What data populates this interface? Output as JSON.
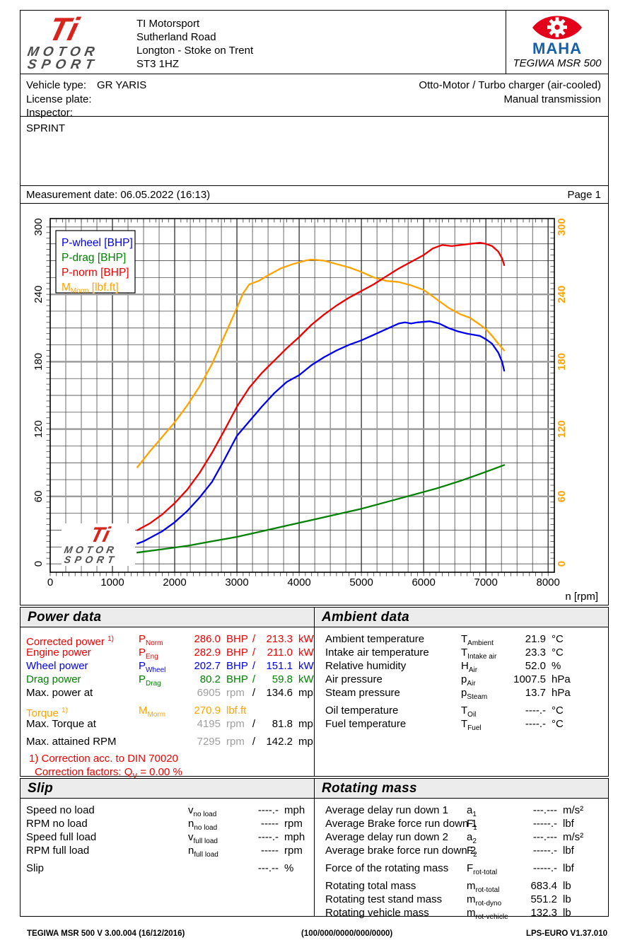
{
  "header": {
    "logo": {
      "ti": "Ti",
      "motor": "MOTOR",
      "sport": "SPORT"
    },
    "company": "TI Motorsport",
    "address_lines": [
      "Sutherland Road",
      "Longton - Stoke on Trent",
      "ST3 1HZ"
    ],
    "device": {
      "brand": "MAHA",
      "model": "TEGIWA MSR 500"
    }
  },
  "vehicle": {
    "rows": [
      {
        "label": "Vehicle type:",
        "value": "GR YARIS"
      },
      {
        "label": "License plate:",
        "value": ""
      },
      {
        "label": "Inspector:",
        "value": ""
      }
    ],
    "engine_desc": "Otto-Motor / Turbo charger (air-cooled)",
    "transmission": "Manual transmission"
  },
  "comment": "SPRINT",
  "measurement": {
    "date_line": "Measurement date: 06.05.2022 (16:13)",
    "page": "Page 1"
  },
  "chart_data": {
    "type": "line",
    "xlabel": "n [rpm]",
    "x_range": [
      0,
      8100
    ],
    "y_range": [
      -7.5,
      307.5
    ],
    "x_ticks": [
      0,
      1000,
      2000,
      3000,
      4000,
      5000,
      6000,
      7000,
      8000
    ],
    "y_ticks": [
      0,
      60,
      120,
      180,
      240,
      300
    ],
    "grid": {
      "x_minor_step": 250,
      "y_minor_step": 15,
      "y_major_step": 60,
      "minor_color": "#2e2e2e",
      "major_color": "#9c9c9c"
    },
    "right_axis_color": "#FFA300",
    "legend": [
      {
        "pre": "P-wheel [BHP]",
        "color": "#0000EE"
      },
      {
        "pre": "P-drag [BHP]",
        "color": "#008200"
      },
      {
        "pre": "P-norm [BHP]",
        "color": "#EE0000"
      },
      {
        "pre": "M",
        "sub": "Morm",
        "post": " [lbf.ft]",
        "color": "#FFA300"
      }
    ],
    "series": [
      {
        "name": "P-drag [BHP]",
        "color": "#008200",
        "points": [
          [
            1400,
            10
          ],
          [
            1800,
            13
          ],
          [
            2200,
            16
          ],
          [
            2600,
            20
          ],
          [
            3000,
            24
          ],
          [
            3400,
            29
          ],
          [
            3800,
            34
          ],
          [
            4200,
            39
          ],
          [
            4600,
            44
          ],
          [
            5000,
            49
          ],
          [
            5400,
            55
          ],
          [
            5800,
            61
          ],
          [
            6200,
            67
          ],
          [
            6600,
            74
          ],
          [
            6905,
            80
          ],
          [
            7100,
            84
          ],
          [
            7295,
            88
          ]
        ]
      },
      {
        "name": "P-wheel [BHP]",
        "color": "#0000EE",
        "points": [
          [
            1400,
            18
          ],
          [
            1500,
            20
          ],
          [
            1600,
            23
          ],
          [
            1800,
            29
          ],
          [
            2000,
            37
          ],
          [
            2200,
            47
          ],
          [
            2400,
            59
          ],
          [
            2600,
            73
          ],
          [
            2800,
            93
          ],
          [
            3000,
            114
          ],
          [
            3200,
            127
          ],
          [
            3400,
            140
          ],
          [
            3600,
            152
          ],
          [
            3800,
            162
          ],
          [
            4000,
            168
          ],
          [
            4200,
            177
          ],
          [
            4400,
            184
          ],
          [
            4600,
            190
          ],
          [
            4800,
            195
          ],
          [
            5000,
            199
          ],
          [
            5200,
            204
          ],
          [
            5400,
            209
          ],
          [
            5600,
            214
          ],
          [
            5700,
            215
          ],
          [
            5800,
            214
          ],
          [
            5900,
            215
          ],
          [
            6100,
            216
          ],
          [
            6250,
            214
          ],
          [
            6400,
            210
          ],
          [
            6550,
            207
          ],
          [
            6700,
            205
          ],
          [
            6905,
            203
          ],
          [
            7000,
            200
          ],
          [
            7100,
            196
          ],
          [
            7200,
            188
          ],
          [
            7260,
            180
          ],
          [
            7295,
            172
          ]
        ]
      },
      {
        "name": "M-Morm [lbf.ft]",
        "color": "#FFA300",
        "points": [
          [
            1400,
            86
          ],
          [
            1500,
            93
          ],
          [
            1600,
            100
          ],
          [
            1800,
            113
          ],
          [
            2000,
            126
          ],
          [
            2200,
            141
          ],
          [
            2400,
            158
          ],
          [
            2600,
            178
          ],
          [
            2800,
            203
          ],
          [
            3000,
            228
          ],
          [
            3100,
            241
          ],
          [
            3200,
            249
          ],
          [
            3350,
            252
          ],
          [
            3500,
            257
          ],
          [
            3700,
            263
          ],
          [
            3900,
            267
          ],
          [
            4100,
            270
          ],
          [
            4195,
            271
          ],
          [
            4400,
            270
          ],
          [
            4600,
            267
          ],
          [
            4800,
            264
          ],
          [
            5000,
            260
          ],
          [
            5200,
            255
          ],
          [
            5400,
            252
          ],
          [
            5600,
            251
          ],
          [
            5800,
            248
          ],
          [
            6000,
            244
          ],
          [
            6200,
            236
          ],
          [
            6400,
            228
          ],
          [
            6600,
            222
          ],
          [
            6750,
            219
          ],
          [
            6905,
            213
          ],
          [
            7000,
            209
          ],
          [
            7100,
            203
          ],
          [
            7200,
            196
          ],
          [
            7295,
            190
          ]
        ]
      },
      {
        "name": "P-norm [BHP]",
        "color": "#EE0000",
        "points": [
          [
            1400,
            30
          ],
          [
            1500,
            33
          ],
          [
            1600,
            36
          ],
          [
            1800,
            44
          ],
          [
            2000,
            54
          ],
          [
            2200,
            66
          ],
          [
            2400,
            81
          ],
          [
            2600,
            99
          ],
          [
            2800,
            119
          ],
          [
            3000,
            140
          ],
          [
            3200,
            157
          ],
          [
            3400,
            170
          ],
          [
            3600,
            181
          ],
          [
            3800,
            192
          ],
          [
            4000,
            202
          ],
          [
            4200,
            213
          ],
          [
            4400,
            222
          ],
          [
            4600,
            230
          ],
          [
            4800,
            237
          ],
          [
            5000,
            243
          ],
          [
            5200,
            249
          ],
          [
            5400,
            256
          ],
          [
            5600,
            263
          ],
          [
            5800,
            269
          ],
          [
            6000,
            275
          ],
          [
            6150,
            281
          ],
          [
            6300,
            284
          ],
          [
            6450,
            283
          ],
          [
            6600,
            284
          ],
          [
            6750,
            285
          ],
          [
            6905,
            286
          ],
          [
            7000,
            285
          ],
          [
            7100,
            283
          ],
          [
            7200,
            278
          ],
          [
            7260,
            272
          ],
          [
            7295,
            266
          ]
        ]
      }
    ],
    "watermark": {
      "ti": "Ti",
      "motor": "MOTOR",
      "sport": "SPORT"
    }
  },
  "palette": {
    "red": "#EE0000",
    "blue": "#0000EE",
    "green": "#008200",
    "orange": "#FFA300",
    "gray": "#9e9e9e",
    "black": "#000000"
  },
  "tables": {
    "power": {
      "title": "Power data",
      "rows": [
        {
          "label": "Corrected power",
          "note": "1)",
          "sym": "P",
          "sub": "Norm",
          "v1": "286.0",
          "u1": "BHP",
          "sep": "/",
          "v2": "213.3",
          "u2": "kW",
          "c": "red"
        },
        {
          "label": "Engine power",
          "sym": "P",
          "sub": "Eng",
          "v1": "282.9",
          "u1": "BHP",
          "sep": "/",
          "v2": "211.0",
          "u2": "kW",
          "c": "red"
        },
        {
          "label": "Wheel power",
          "sym": "P",
          "sub": "Wheel",
          "v1": "202.7",
          "u1": "BHP",
          "sep": "/",
          "v2": "151.1",
          "u2": "kW",
          "c": "blue"
        },
        {
          "label": "Drag power",
          "sym": "P",
          "sub": "Drag",
          "v1": "80.2",
          "u1": "BHP",
          "sep": "/",
          "v2": "59.8",
          "u2": "kW",
          "c": "green"
        },
        {
          "label": "Max. power at",
          "v1": "6905",
          "u1": "rpm",
          "sep": "/",
          "v2": "134.6",
          "u2": "mph",
          "c1": "gray"
        },
        {
          "label": "Torque",
          "note": "1)",
          "sym": "M",
          "sub": "Morm",
          "v1": "270.9",
          "u1": "lbf.ft",
          "c": "orange",
          "gap": true
        },
        {
          "label": "Max. Torque at",
          "v1": "4195",
          "u1": "rpm",
          "sep": "/",
          "v2": "81.8",
          "u2": "mph",
          "c1": "gray"
        },
        {
          "label": "Max. attained RPM",
          "v1": "7295",
          "u1": "rpm",
          "sep": "/",
          "v2": "142.2",
          "u2": "mph",
          "c1": "gray",
          "gap": true
        }
      ],
      "footnote1": "1) Correction acc. to DIN 70020",
      "footnote2": {
        "pre": "Correction factors: Q",
        "sub": "V",
        "post": " =   0.00 %"
      }
    },
    "ambient": {
      "title": "Ambient data",
      "rows": [
        {
          "label": "Ambient temperature",
          "sym": "T",
          "sub": "Ambient",
          "v1": "21.9",
          "u1": "°C"
        },
        {
          "label": "Intake air temperature",
          "sym": "T",
          "sub": "Intake air",
          "v1": "23.3",
          "u1": "°C"
        },
        {
          "label": "Relative humidity",
          "sym": "H",
          "sub": "Air",
          "v1": "52.0",
          "u1": "%"
        },
        {
          "label": "Air pressure",
          "sym": "p",
          "sub": "Air",
          "v1": "1007.5",
          "u1": "hPa"
        },
        {
          "label": "Steam pressure",
          "sym": "p",
          "sub": "Steam",
          "v1": "13.7",
          "u1": "hPa"
        },
        {
          "label": "Oil temperature",
          "sym": "T",
          "sub": "Oil",
          "v1": "----.-",
          "u1": "°C",
          "gap": true
        },
        {
          "label": "Fuel temperature",
          "sym": "T",
          "sub": "Fuel",
          "v1": "----.-",
          "u1": "°C"
        }
      ]
    },
    "slip": {
      "title": "Slip",
      "rows": [
        {
          "label": "Speed no load",
          "sym": "v",
          "sub": "no load",
          "v1": "----.-",
          "u1": "mph"
        },
        {
          "label": "RPM no load",
          "sym": "n",
          "sub": "no load",
          "v1": "-----",
          "u1": "rpm"
        },
        {
          "label": "Speed full load",
          "sym": "v",
          "sub": "full load",
          "v1": "----.-",
          "u1": "mph"
        },
        {
          "label": "RPM full load",
          "sym": "n",
          "sub": "full load",
          "v1": "-----",
          "u1": "rpm"
        },
        {
          "label": "Slip",
          "v1": "---.--",
          "u1": "%",
          "gap": true
        }
      ]
    },
    "rotating": {
      "title": "Rotating mass",
      "rows": [
        {
          "label": "Average delay run down 1",
          "sym": "a",
          "sub": "1",
          "v1": "---.---",
          "u1": "m/s²"
        },
        {
          "label": "Average Brake force run down 1",
          "sym": "F",
          "sub": "1",
          "v1": "-----.-",
          "u1": "lbf"
        },
        {
          "label": "Average delay run down 2",
          "sym": "a",
          "sub": "2",
          "v1": "---.---",
          "u1": "m/s²"
        },
        {
          "label": "Average brake force run down 2",
          "sym": "F",
          "sub": "2",
          "v1": "-----.-",
          "u1": "lbf"
        },
        {
          "label": "Force of the rotating mass",
          "sym": "F",
          "sub": "rot-total",
          "v1": "-----.-",
          "u1": "lbf",
          "gap": true
        },
        {
          "label": "Rotating total mass",
          "sym": "m",
          "sub": "rot-total",
          "v1": "683.4",
          "u1": "lb",
          "gap": true
        },
        {
          "label": "Rotating test stand mass",
          "sym": "m",
          "sub": "rot-dyno",
          "v1": "551.2",
          "u1": "lb"
        },
        {
          "label": "Rotating vehicle mass",
          "sym": "m",
          "sub": "rot-vehicle",
          "v1": "132.3",
          "u1": "lb"
        }
      ]
    }
  },
  "footer": {
    "left": "TEGIWA MSR 500 V 3.00.004 (16/12/2016)",
    "center": "(100/000/0000/000/0000)",
    "right": "LPS-EURO V1.37.010"
  }
}
